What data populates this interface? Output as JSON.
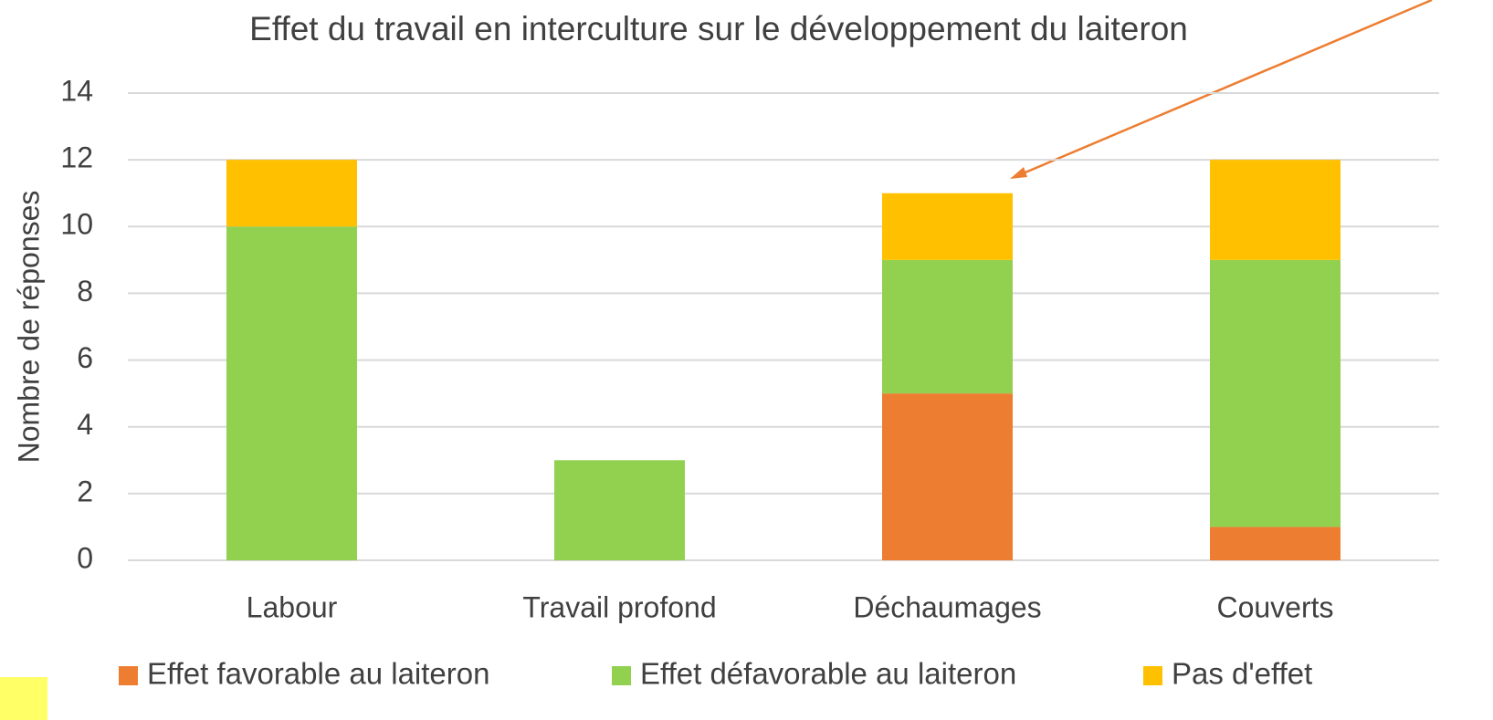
{
  "chart_data": {
    "type": "bar",
    "stacked": true,
    "title": "Effet du travail en interculture sur le développement du laiteron",
    "y_label": "Nombre de réponses",
    "categories": [
      "Labour",
      "Travail profond",
      "Déchaumages",
      "Couverts"
    ],
    "series": [
      {
        "name": "Effet favorable au laiteron",
        "color": "#ed7d31",
        "values": [
          0,
          0,
          5,
          1
        ]
      },
      {
        "name": "Effet défavorable au laiteron",
        "color": "#92d050",
        "values": [
          10,
          3,
          4,
          8
        ]
      },
      {
        "name": "Pas d'effet",
        "color": "#ffc000",
        "values": [
          2,
          0,
          2,
          3
        ]
      }
    ],
    "ylim": [
      0,
      14
    ],
    "yticks": [
      0,
      2,
      4,
      6,
      8,
      10,
      12,
      14
    ],
    "grid": true,
    "legend": "bottom"
  }
}
